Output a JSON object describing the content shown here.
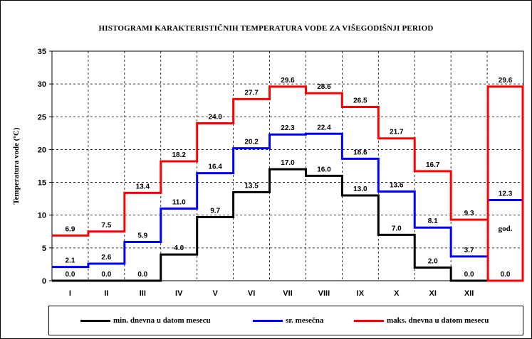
{
  "chart_data": {
    "type": "line",
    "style": "step",
    "title": "HISTOGRAMI KARAKTERISTIČNIH TEMPERATURA VODE ZA VIŠEGODIŠNJI PERIOD",
    "ylabel": "Temperatura vode (ºC)",
    "xlabel": "",
    "categories": [
      "I",
      "II",
      "III",
      "IV",
      "V",
      "VI",
      "VII",
      "VIII",
      "IX",
      "X",
      "XI",
      "XII",
      "god."
    ],
    "ylim": [
      0,
      35
    ],
    "yticks": [
      0,
      5,
      10,
      15,
      20,
      25,
      30,
      35
    ],
    "grid": true,
    "legend_position": "bottom",
    "series": [
      {
        "name": "min. dnevna u datom mesecu",
        "color": "#000000",
        "values": [
          0.0,
          0.0,
          0.0,
          4.0,
          9.7,
          13.5,
          17.0,
          16.0,
          13.0,
          7.0,
          2.0,
          0.0,
          0.0
        ],
        "labels": [
          "0.0",
          "0.0",
          "0.0",
          "4.0",
          "9.7",
          "13.5",
          "17.0",
          "16.0",
          "13.0",
          "7.0",
          "2.0",
          "0.0",
          "0.0"
        ]
      },
      {
        "name": "sr. mesečna",
        "color": "#0000ff",
        "values": [
          2.1,
          2.6,
          5.9,
          11.0,
          16.4,
          20.2,
          22.3,
          22.4,
          18.6,
          13.6,
          8.1,
          3.7,
          12.3
        ],
        "labels": [
          "2.1",
          "2.6",
          "5.9",
          "11.0",
          "16.4",
          "20.2",
          "22.3",
          "22.4",
          "18.6",
          "13.6",
          "8.1",
          "3.7",
          "12.3"
        ]
      },
      {
        "name": "maks. dnevna u datom mesecu",
        "color": "#ff0000",
        "values": [
          6.9,
          7.5,
          13.4,
          18.2,
          24.0,
          27.7,
          29.6,
          28.6,
          26.5,
          21.7,
          16.7,
          9.3,
          29.6
        ],
        "labels": [
          "6.9",
          "7.5",
          "13.4",
          "18.2",
          "24.0",
          "27.7",
          "29.6",
          "28.6",
          "26.5",
          "21.7",
          "16.7",
          "9.3",
          "29.6"
        ]
      }
    ]
  }
}
